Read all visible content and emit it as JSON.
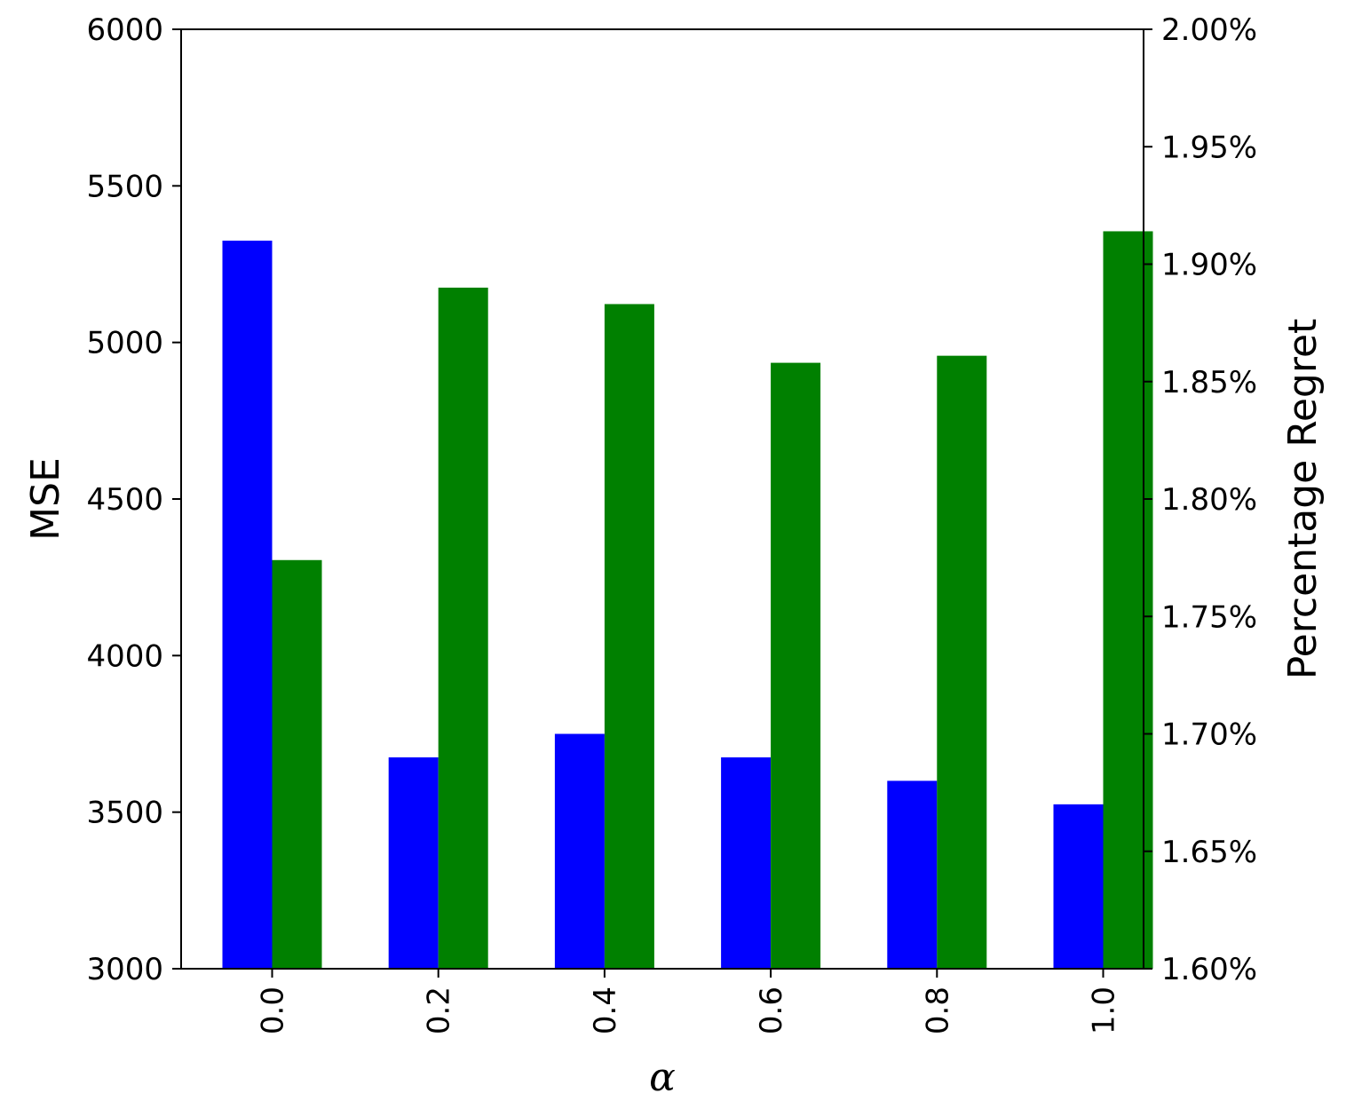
{
  "chart_data": {
    "type": "bar",
    "categories": [
      "0.0",
      "0.2",
      "0.4",
      "0.6",
      "0.8",
      "1.0"
    ],
    "xlabel": "α",
    "series": [
      {
        "name": "",
        "axis": "left",
        "color": "#0000ff",
        "values": [
          5325,
          3675,
          3750,
          3675,
          3600,
          3525
        ]
      },
      {
        "name": "",
        "axis": "right",
        "color": "#008000",
        "values": [
          1.774,
          1.89,
          1.883,
          1.858,
          1.861,
          1.914
        ]
      }
    ],
    "left_axis": {
      "label": "MSE",
      "ylim": [
        3000,
        6000
      ],
      "ticks": [
        "3000",
        "3500",
        "4000",
        "4500",
        "5000",
        "5500",
        "6000"
      ]
    },
    "right_axis": {
      "label": "Percentage Regret",
      "ylim": [
        1.6,
        2.0
      ],
      "ticks": [
        "1.60%",
        "1.65%",
        "1.70%",
        "1.75%",
        "1.80%",
        "1.85%",
        "1.90%",
        "1.95%",
        "2.00%"
      ]
    },
    "grid": false,
    "legend": "none"
  }
}
